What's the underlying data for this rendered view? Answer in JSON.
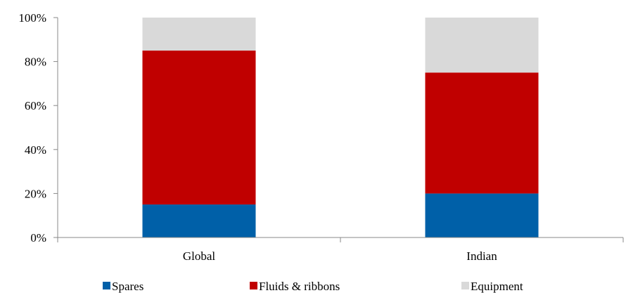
{
  "chart_data": {
    "type": "bar",
    "stacked": true,
    "categories": [
      "Global",
      "Indian"
    ],
    "series": [
      {
        "name": "Spares",
        "values": [
          15,
          20
        ],
        "color": "#0060a8"
      },
      {
        "name": "Fluids & ribbons",
        "values": [
          70,
          55
        ],
        "color": "#c00000"
      },
      {
        "name": "Equipment",
        "values": [
          15,
          25
        ],
        "color": "#d9d9d9"
      }
    ],
    "ylim": [
      0,
      100
    ],
    "yticks": [
      "0%",
      "20%",
      "40%",
      "60%",
      "80%",
      "100%"
    ],
    "title": "",
    "xlabel": "",
    "ylabel": "",
    "grid": false,
    "legend_position": "bottom"
  }
}
